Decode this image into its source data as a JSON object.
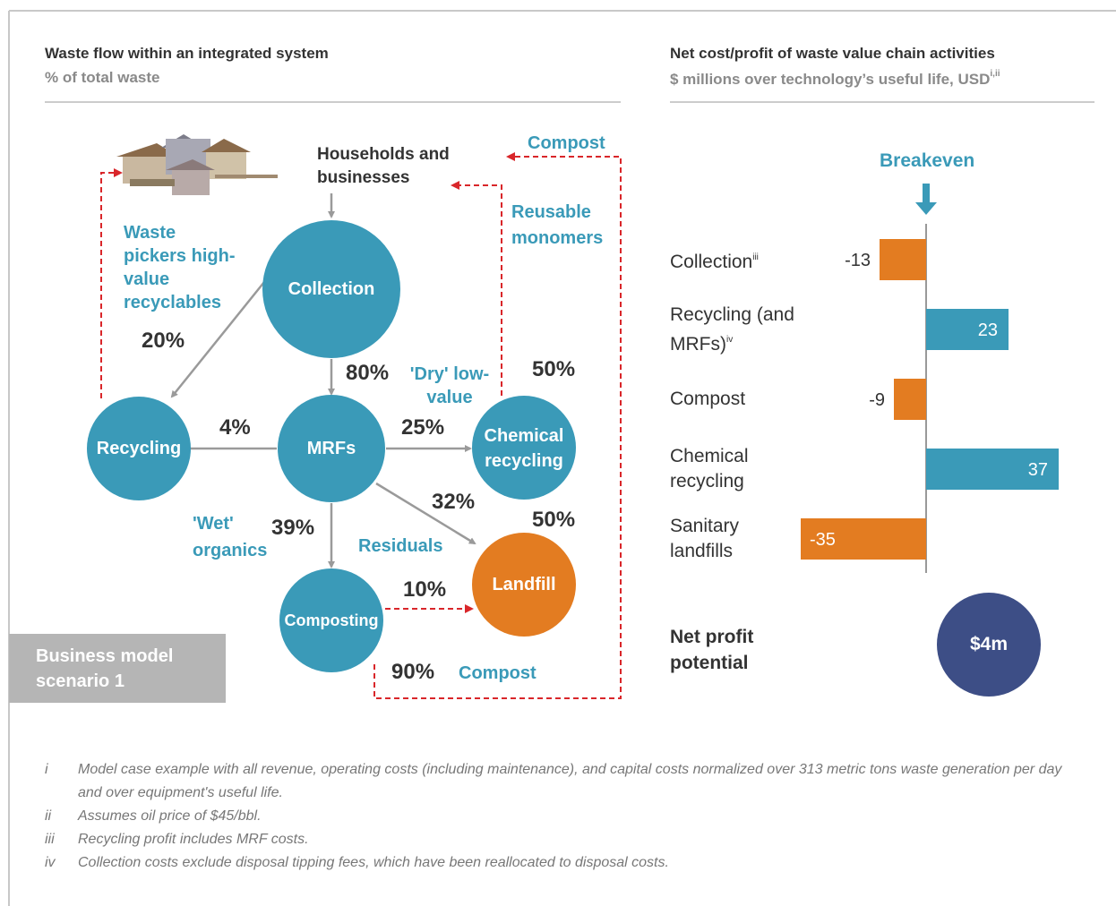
{
  "left_panel": {
    "title": "Waste flow within an integrated system",
    "subtitle": "% of total waste",
    "nodes": {
      "households": "Households and businesses",
      "collection": "Collection",
      "mrfs": "MRFs",
      "recycling": "Recycling",
      "chemical_recycling": "Chemical recycling",
      "landfill": "Landfill",
      "composting": "Composting"
    },
    "labels": {
      "waste_pickers": "Waste pickers high-value recyclables",
      "collection_to_recycling": "20%",
      "collection_to_mrfs": "80%",
      "dry_low_value": "'Dry' low-value",
      "chemical_top": "50%",
      "mrfs_to_recycling": "4%",
      "mrfs_to_chemical": "25%",
      "mrfs_to_landfill": "32%",
      "landfill_top": "50%",
      "wet_organics": "'Wet' organics",
      "mrfs_to_composting": "39%",
      "residuals": "Residuals",
      "composting_to_landfill": "10%",
      "composting_out": "90%",
      "compost_bottom": "Compost",
      "compost_top": "Compost",
      "reusable_monomers": "Reusable monomers"
    },
    "scenario": "Business model scenario 1"
  },
  "chart_data": {
    "type": "bar",
    "orientation": "horizontal",
    "title": "Net cost/profit of waste value chain activities",
    "subtitle": "$ millions over technology’s useful life, USD",
    "subtitle_superscript": "i,ii",
    "annotation": "Breakeven",
    "categories": [
      "Collection",
      "Recycling (and MRFs)",
      "Compost",
      "Chemical recycling",
      "Sanitary landfills"
    ],
    "category_superscripts": [
      "iii",
      "iv",
      null,
      null,
      null
    ],
    "values": [
      -13,
      23,
      -9,
      37,
      -35
    ],
    "colors": {
      "negative": "#e37c21",
      "positive": "#3a9ab8"
    },
    "net_profit": {
      "label": "Net profit potential",
      "value_label": "$4m",
      "color": "#3d4e86"
    }
  },
  "footnotes": [
    {
      "marker": "i",
      "text": "Model case example with all revenue, operating costs (including maintenance), and capital costs normalized over 313 metric tons waste generation per day and over equipment's useful life."
    },
    {
      "marker": "ii",
      "text": "Assumes oil price of $45/bbl."
    },
    {
      "marker": "iii",
      "text": "Recycling profit includes MRF costs."
    },
    {
      "marker": "iv",
      "text": "Collection costs exclude disposal tipping fees, which have been reallocated to disposal costs."
    }
  ]
}
